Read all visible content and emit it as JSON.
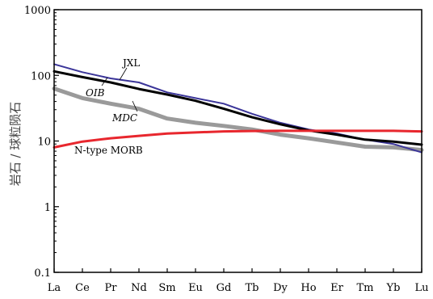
{
  "chart_data": {
    "type": "line",
    "title": "",
    "xlabel": "",
    "ylabel": "岩石 / 球粒陨石",
    "yscale": "log",
    "ylim": [
      0.1,
      1000
    ],
    "yticks": [
      "0.1",
      "1",
      "10",
      "100",
      "1000"
    ],
    "yticks_values": [
      0.1,
      1,
      10,
      100,
      1000
    ],
    "categories": [
      "La",
      "Ce",
      "Pr",
      "Nd",
      "Sm",
      "Eu",
      "Gd",
      "Tb",
      "Dy",
      "Ho",
      "Er",
      "Tm",
      "Yb",
      "Lu"
    ],
    "grid": false,
    "legend": "none (inline labels)",
    "series": [
      {
        "name": "JXL",
        "color": "#3b3599",
        "width": 2,
        "values": [
          148,
          112,
          90,
          78,
          55,
          45,
          37,
          26,
          19,
          15,
          13,
          10.5,
          9,
          6.7
        ]
      },
      {
        "name": "OIB",
        "color": "#000000",
        "width": 3,
        "values": [
          115,
          94,
          78,
          62,
          51,
          41,
          31,
          23,
          18,
          14.5,
          12.5,
          10.5,
          9.8,
          8.8
        ]
      },
      {
        "name": "MDC",
        "color": "#9a9a9a",
        "width": 5,
        "values": [
          63,
          45,
          37,
          31,
          22,
          19,
          17,
          15,
          12.5,
          11,
          9.5,
          8.2,
          8,
          7.3
        ]
      },
      {
        "name": "N-type MORB",
        "color": "#e8272e",
        "width": 3,
        "values": [
          8,
          9.8,
          11,
          12,
          13,
          13.5,
          14,
          14.2,
          14.3,
          14.3,
          14.3,
          14.3,
          14.3,
          14
        ]
      }
    ],
    "annotations": [
      "JXL",
      "OIB",
      "MDC",
      "N-type MORB"
    ]
  }
}
